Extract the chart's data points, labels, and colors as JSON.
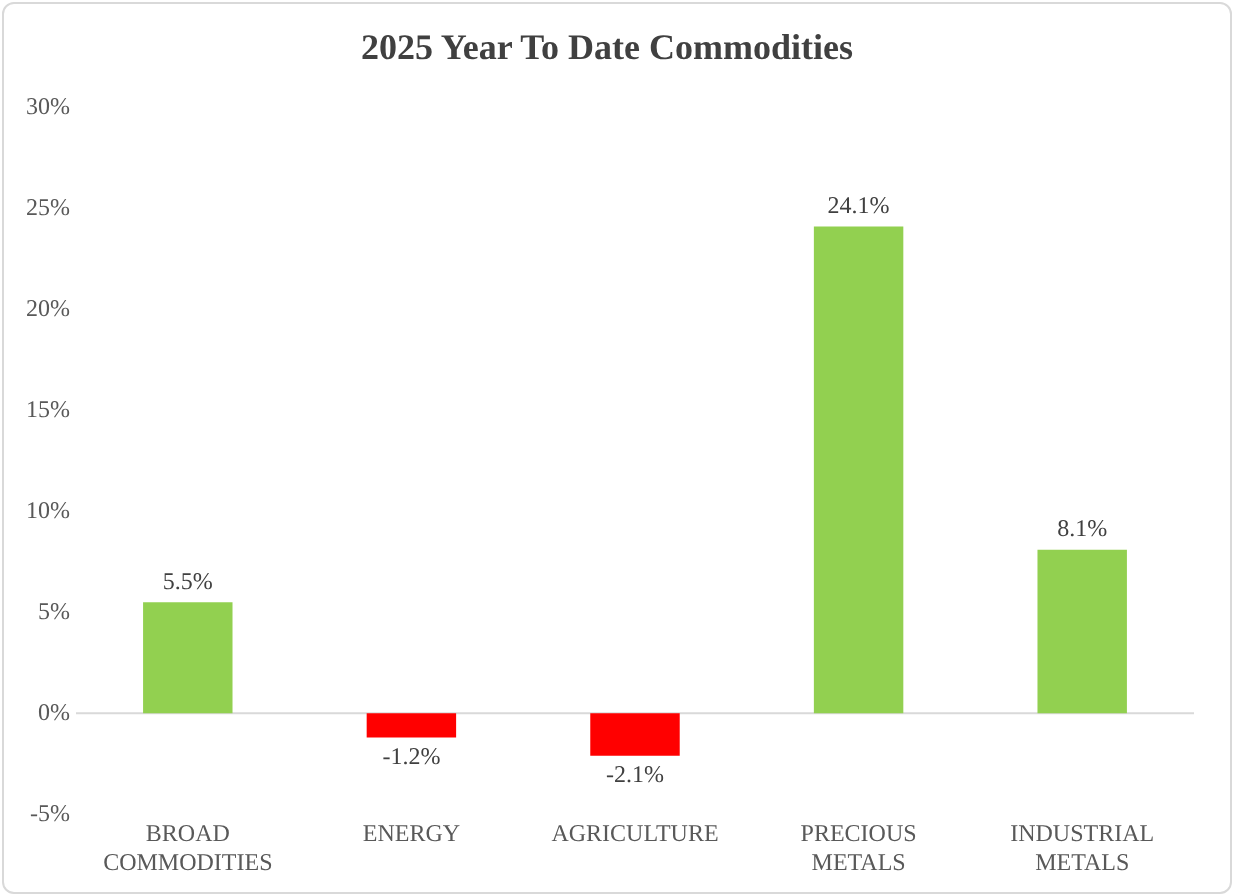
{
  "chart_data": {
    "type": "bar",
    "title": "2025 Year To Date Commodities",
    "categories": [
      "BROAD COMMODITIES",
      "ENERGY",
      "AGRICULTURE",
      "PRECIOUS METALS",
      "INDUSTRIAL METALS"
    ],
    "values": [
      5.5,
      -1.2,
      -2.1,
      24.1,
      8.1
    ],
    "colors": [
      "#92d050",
      "#ff0000",
      "#ff0000",
      "#92d050",
      "#92d050"
    ],
    "value_labels": [
      "5.5%",
      "-1.2%",
      "-2.1%",
      "24.1%",
      "8.1%"
    ],
    "ylim": [
      -5,
      30
    ],
    "yticks": [
      {
        "value": -5,
        "label": "-5%"
      },
      {
        "value": 0,
        "label": "0%"
      },
      {
        "value": 5,
        "label": "5%"
      },
      {
        "value": 10,
        "label": "10%"
      },
      {
        "value": 15,
        "label": "15%"
      },
      {
        "value": 20,
        "label": "20%"
      },
      {
        "value": 25,
        "label": "25%"
      },
      {
        "value": 30,
        "label": "30%"
      }
    ],
    "ref_lines": [
      {
        "axis": "y",
        "value": 0,
        "color": "#d9d9d9"
      }
    ],
    "grid": false,
    "legend": false
  }
}
